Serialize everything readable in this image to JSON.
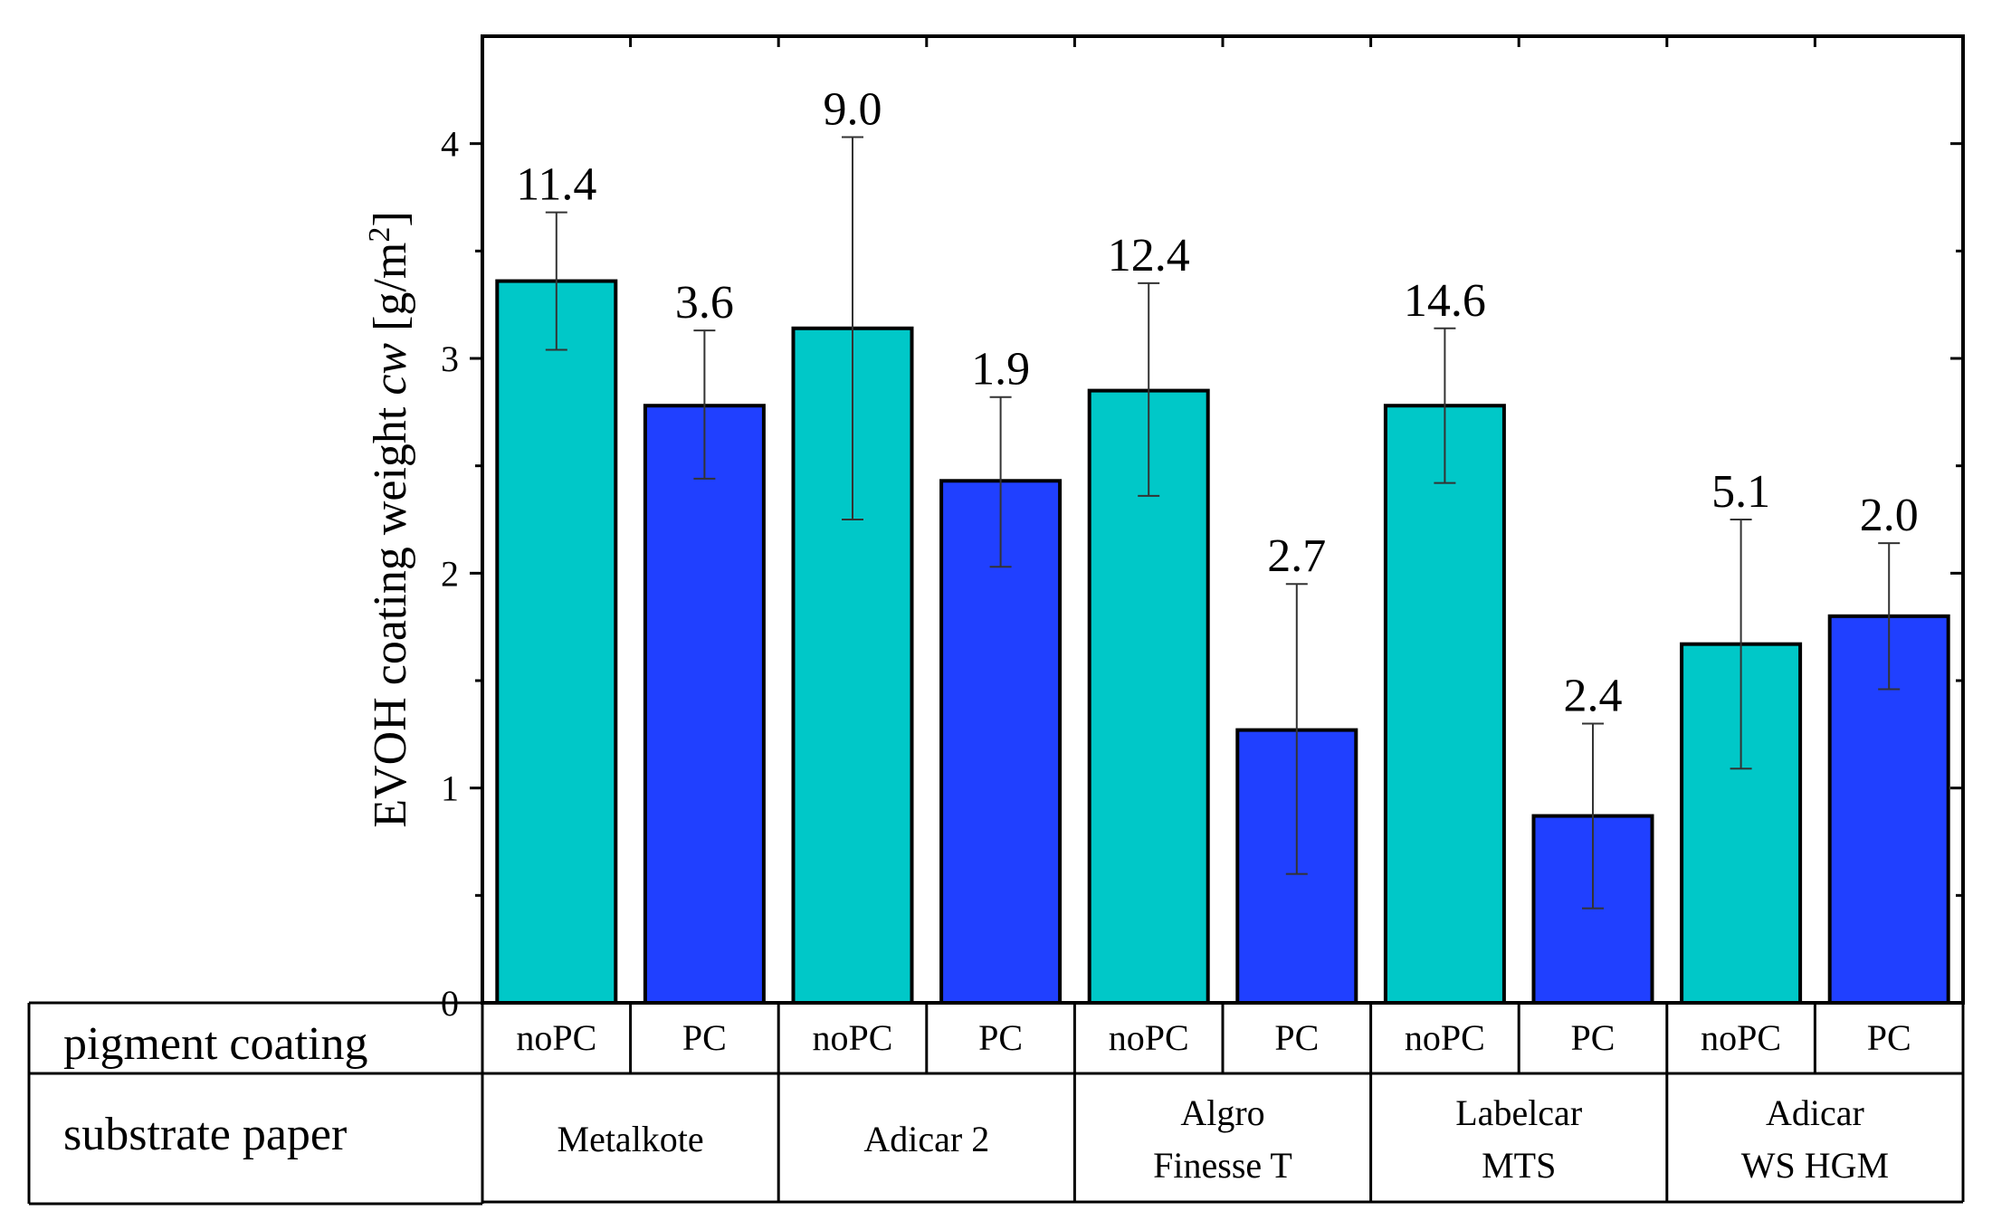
{
  "chart_data": {
    "type": "bar",
    "ylabel_main": "EVOH coating weight ",
    "ylabel_var": "cw",
    "ylabel_unit": " [g/m",
    "ylabel_sup": "2",
    "ylabel_close": "]",
    "ylim": [
      0,
      4.5
    ],
    "yticks": [
      "0",
      "1",
      "2",
      "3",
      "4"
    ],
    "colors": {
      "noPC": "#00C8C8",
      "PC": "#2040FF"
    },
    "bars": [
      {
        "substrate": "Metalkote",
        "coating": "noPC",
        "value": 3.36,
        "err_low": 3.04,
        "err_high": 3.68,
        "label": "11.4"
      },
      {
        "substrate": "Metalkote",
        "coating": "PC",
        "value": 2.78,
        "err_low": 2.44,
        "err_high": 3.13,
        "label": "3.6"
      },
      {
        "substrate": "Adicar 2",
        "coating": "noPC",
        "value": 3.14,
        "err_low": 2.25,
        "err_high": 4.03,
        "label": "9.0"
      },
      {
        "substrate": "Adicar 2",
        "coating": "PC",
        "value": 2.43,
        "err_low": 2.03,
        "err_high": 2.82,
        "label": "1.9"
      },
      {
        "substrate": "Algro Finesse T",
        "coating": "noPC",
        "value": 2.85,
        "err_low": 2.36,
        "err_high": 3.35,
        "label": "12.4"
      },
      {
        "substrate": "Algro Finesse T",
        "coating": "PC",
        "value": 1.27,
        "err_low": 0.6,
        "err_high": 1.95,
        "label": "2.7"
      },
      {
        "substrate": "Labelcar MTS",
        "coating": "noPC",
        "value": 2.78,
        "err_low": 2.42,
        "err_high": 3.14,
        "label": "14.6"
      },
      {
        "substrate": "Labelcar MTS",
        "coating": "PC",
        "value": 0.87,
        "err_low": 0.44,
        "err_high": 1.3,
        "label": "2.4"
      },
      {
        "substrate": "Adicar WS HGM",
        "coating": "noPC",
        "value": 1.67,
        "err_low": 1.09,
        "err_high": 2.25,
        "label": "5.1"
      },
      {
        "substrate": "Adicar WS HGM",
        "coating": "PC",
        "value": 1.8,
        "err_low": 1.46,
        "err_high": 2.14,
        "label": "2.0"
      }
    ],
    "table": {
      "row1_label": "pigment coating",
      "row2_label": "substrate paper",
      "substrates": [
        {
          "lines": [
            "Metalkote"
          ]
        },
        {
          "lines": [
            "Adicar 2"
          ]
        },
        {
          "lines": [
            "Algro",
            "Finesse T"
          ]
        },
        {
          "lines": [
            "Labelcar",
            "MTS"
          ]
        },
        {
          "lines": [
            "Adicar",
            "WS HGM"
          ]
        }
      ]
    }
  }
}
